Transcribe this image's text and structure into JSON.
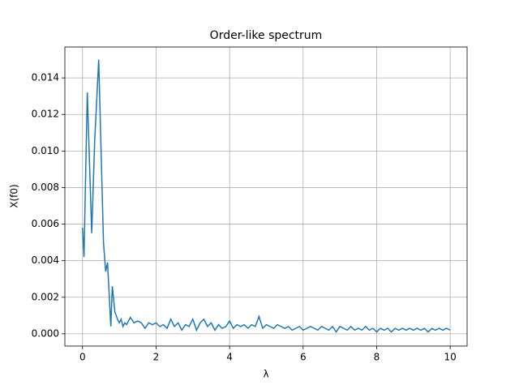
{
  "chart_data": {
    "type": "line",
    "title": "Order-like spectrum",
    "x_label": "λ",
    "y_label": "X(f0)",
    "x": [
      0,
      0.04,
      0.13,
      0.25,
      0.33,
      0.44,
      0.57,
      0.63,
      0.68,
      0.77,
      0.81,
      0.88,
      0.95,
      1.0,
      1.05,
      1.1,
      1.15,
      1.2,
      1.3,
      1.4,
      1.5,
      1.6,
      1.7,
      1.8,
      1.9,
      2.0,
      2.1,
      2.2,
      2.3,
      2.4,
      2.5,
      2.6,
      2.7,
      2.8,
      2.9,
      3.0,
      3.1,
      3.2,
      3.3,
      3.4,
      3.5,
      3.6,
      3.7,
      3.8,
      3.9,
      4.0,
      4.1,
      4.2,
      4.3,
      4.4,
      4.5,
      4.6,
      4.7,
      4.8,
      4.9,
      5.0,
      5.1,
      5.2,
      5.3,
      5.4,
      5.5,
      5.6,
      5.7,
      5.8,
      5.9,
      6.0,
      6.1,
      6.2,
      6.3,
      6.4,
      6.5,
      6.6,
      6.7,
      6.8,
      6.9,
      7.0,
      7.1,
      7.2,
      7.3,
      7.4,
      7.5,
      7.6,
      7.7,
      7.8,
      7.9,
      8.0,
      8.1,
      8.2,
      8.3,
      8.4,
      8.5,
      8.6,
      8.7,
      8.8,
      8.9,
      9.0,
      9.1,
      9.2,
      9.3,
      9.4,
      9.5,
      9.6,
      9.7,
      9.8,
      9.9,
      10.0
    ],
    "series": [
      {
        "color": "#1f77b4",
        "values": [
          0.0058,
          0.0042,
          0.0132,
          0.0055,
          0.0105,
          0.015,
          0.005,
          0.0034,
          0.0039,
          0.0004,
          0.0026,
          0.0012,
          0.0008,
          0.0006,
          0.0008,
          0.0004,
          0.0006,
          0.0005,
          0.0009,
          0.0006,
          0.0007,
          0.0006,
          0.0003,
          0.0006,
          0.0005,
          0.0006,
          0.0004,
          0.0005,
          0.0003,
          0.0008,
          0.0004,
          0.0006,
          0.0002,
          0.0005,
          0.0004,
          0.0008,
          0.0002,
          0.0006,
          0.0008,
          0.0004,
          0.0006,
          0.0002,
          0.0005,
          0.0003,
          0.0004,
          0.0007,
          0.0003,
          0.0005,
          0.0004,
          0.0005,
          0.0003,
          0.0005,
          0.0004,
          0.00095,
          0.0003,
          0.0005,
          0.0004,
          0.0003,
          0.0005,
          0.0004,
          0.0003,
          0.0004,
          0.0002,
          0.0003,
          0.0004,
          0.0002,
          0.0003,
          0.0004,
          0.0003,
          0.0002,
          0.0004,
          0.0003,
          0.0002,
          0.0004,
          0.0001,
          0.0004,
          0.0003,
          0.0002,
          0.0004,
          0.0002,
          0.0003,
          0.0002,
          0.0004,
          0.0002,
          0.0003,
          0.0001,
          0.0003,
          0.0002,
          0.0003,
          0.0001,
          0.0003,
          0.0002,
          0.0003,
          0.0002,
          0.0003,
          0.0002,
          0.0003,
          0.0002,
          0.0003,
          0.0001,
          0.0003,
          0.0002,
          0.0003,
          0.0002,
          0.0003,
          0.0002
        ]
      }
    ],
    "xlim": [
      -0.48,
      10.46
    ],
    "ylim": [
      -0.00067,
      0.01569
    ],
    "xticks": [
      0,
      2,
      4,
      6,
      8,
      10
    ],
    "yticks": [
      {
        "value": 0,
        "label": "0.000"
      },
      {
        "value": 0.002,
        "label": "0.002"
      },
      {
        "value": 0.004,
        "label": "0.004"
      },
      {
        "value": 0.006,
        "label": "0.006"
      },
      {
        "value": 0.008,
        "label": "0.008"
      },
      {
        "value": 0.01,
        "label": "0.010"
      },
      {
        "value": 0.012,
        "label": "0.012"
      },
      {
        "value": 0.014,
        "label": "0.014"
      }
    ],
    "grid": true
  }
}
